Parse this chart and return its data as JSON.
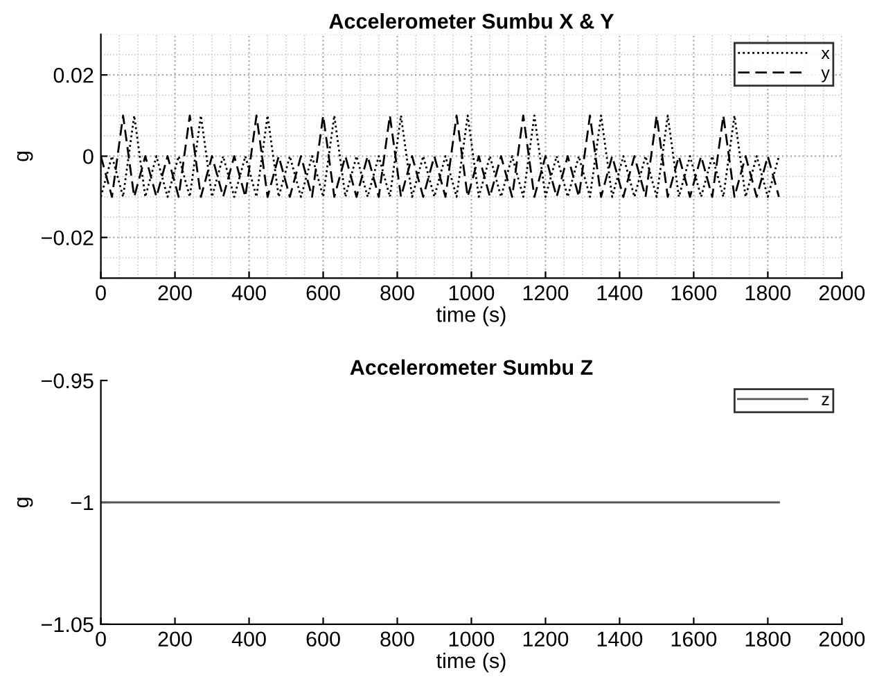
{
  "chart_data": [
    {
      "type": "line",
      "title": "Accelerometer Sumbu X & Y",
      "xlabel": "time (s)",
      "ylabel": "g",
      "xlim": [
        0,
        2000
      ],
      "xticks": [
        0,
        200,
        400,
        600,
        800,
        1000,
        1200,
        1400,
        1600,
        1800,
        2000
      ],
      "ylim": [
        -0.03,
        0.03
      ],
      "yticks": [
        -0.02,
        0,
        0.02
      ],
      "grid": true,
      "legend": "top right",
      "x": [
        0,
        30,
        60,
        90,
        120,
        150,
        180,
        210,
        240,
        270,
        300,
        330,
        360,
        390,
        420,
        450,
        480,
        510,
        540,
        570,
        600,
        630,
        660,
        690,
        720,
        750,
        780,
        810,
        840,
        870,
        900,
        930,
        960,
        990,
        1020,
        1050,
        1080,
        1110,
        1140,
        1170,
        1200,
        1230,
        1260,
        1290,
        1320,
        1350,
        1380,
        1410,
        1440,
        1470,
        1500,
        1530,
        1560,
        1590,
        1620,
        1650,
        1680,
        1710,
        1740,
        1770,
        1800,
        1830
      ],
      "series": [
        {
          "name": "x",
          "color": "#000000",
          "line_style": "dotted",
          "values": [
            -0.01,
            0,
            -0.01,
            0.01,
            -0.01,
            0,
            -0.01,
            0,
            -0.01,
            0.01,
            -0.01,
            0,
            -0.01,
            0,
            -0.01,
            0.01,
            -0.01,
            0,
            -0.01,
            0,
            -0.01,
            0.01,
            -0.01,
            0,
            -0.01,
            0,
            -0.01,
            0.01,
            -0.01,
            0,
            -0.01,
            0,
            -0.01,
            0.01,
            -0.01,
            0,
            -0.01,
            0,
            -0.01,
            0.01,
            -0.01,
            0,
            -0.01,
            0,
            -0.01,
            0.01,
            -0.01,
            0,
            -0.01,
            0,
            -0.01,
            0.01,
            -0.01,
            0,
            -0.01,
            0,
            -0.01,
            0.01,
            -0.01,
            0,
            -0.01,
            0
          ]
        },
        {
          "name": "y",
          "color": "#000000",
          "line_style": "dashed",
          "values": [
            0,
            -0.01,
            0.01,
            -0.01,
            0,
            -0.01,
            0,
            -0.01,
            0.01,
            -0.01,
            0,
            -0.01,
            0,
            -0.01,
            0.01,
            -0.01,
            0,
            -0.01,
            0,
            -0.01,
            0.01,
            -0.01,
            0,
            -0.01,
            0,
            -0.01,
            0.01,
            -0.01,
            0,
            -0.01,
            0,
            -0.01,
            0.01,
            -0.01,
            0,
            -0.01,
            0,
            -0.01,
            0.01,
            -0.01,
            0,
            -0.01,
            0,
            -0.01,
            0.01,
            -0.01,
            0,
            -0.01,
            0,
            -0.01,
            0.01,
            -0.01,
            0,
            -0.01,
            0,
            -0.01,
            0.01,
            -0.01,
            0,
            -0.01,
            0,
            -0.01
          ]
        }
      ]
    },
    {
      "type": "line",
      "title": "Accelerometer Sumbu Z",
      "xlabel": "time (s)",
      "ylabel": "g",
      "xlim": [
        0,
        2000
      ],
      "xticks": [
        0,
        200,
        400,
        600,
        800,
        1000,
        1200,
        1400,
        1600,
        1800,
        2000
      ],
      "ylim": [
        -1.05,
        -0.95
      ],
      "yticks": [
        -1.05,
        -1,
        -0.95
      ],
      "legend": "top right",
      "x": [
        0,
        1830
      ],
      "series": [
        {
          "name": "z",
          "color": "#555555",
          "line_style": "solid",
          "values": [
            -1,
            -1
          ]
        }
      ]
    }
  ]
}
